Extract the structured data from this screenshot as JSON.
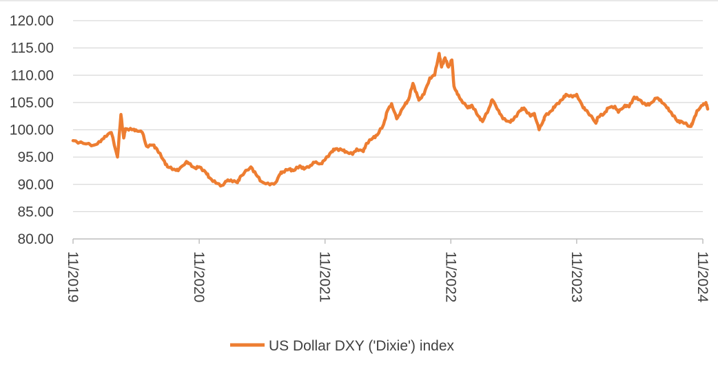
{
  "chart_data": {
    "type": "line",
    "title": "",
    "xlabel": "",
    "ylabel": "",
    "ylim": [
      80,
      120
    ],
    "yticks": [
      "80.00",
      "85.00",
      "90.00",
      "95.00",
      "100.00",
      "105.00",
      "110.00",
      "115.00",
      "120.00"
    ],
    "xticks": [
      "11/2019",
      "11/2020",
      "11/2021",
      "11/2022",
      "11/2023",
      "11/2024"
    ],
    "xlim": [
      "2019-11",
      "2024-11"
    ],
    "grid": "horizontal",
    "legend_position": "bottom",
    "series": [
      {
        "name": "US Dollar DXY ('Dixie') index",
        "color": "#ED7D31",
        "points": [
          [
            "2019-11",
            98.0
          ],
          [
            "2019-12",
            97.5
          ],
          [
            "2020-01",
            97.2
          ],
          [
            "2020-01-20",
            97.8
          ],
          [
            "2020-02",
            98.8
          ],
          [
            "2020-02-20",
            99.5
          ],
          [
            "2020-03-09",
            95.0
          ],
          [
            "2020-03-19",
            102.8
          ],
          [
            "2020-03-27",
            98.5
          ],
          [
            "2020-04",
            100.2
          ],
          [
            "2020-04-20",
            100.0
          ],
          [
            "2020-05",
            100.0
          ],
          [
            "2020-05-20",
            99.5
          ],
          [
            "2020-06",
            97.0
          ],
          [
            "2020-06-20",
            97.2
          ],
          [
            "2020-07",
            96.5
          ],
          [
            "2020-07-20",
            94.5
          ],
          [
            "2020-08",
            93.2
          ],
          [
            "2020-08-20",
            92.8
          ],
          [
            "2020-09",
            92.5
          ],
          [
            "2020-09-25",
            94.2
          ],
          [
            "2020-10",
            93.8
          ],
          [
            "2020-10-20",
            93.0
          ],
          [
            "2020-11",
            93.2
          ],
          [
            "2020-11-20",
            92.2
          ],
          [
            "2020-12",
            91.2
          ],
          [
            "2020-12-20",
            90.2
          ],
          [
            "2021-01-06",
            89.8
          ],
          [
            "2021-01-20",
            90.6
          ],
          [
            "2021-02",
            90.8
          ],
          [
            "2021-02-20",
            90.3
          ],
          [
            "2021-03",
            91.5
          ],
          [
            "2021-03-31",
            93.2
          ],
          [
            "2021-04-15",
            91.8
          ],
          [
            "2021-05",
            90.5
          ],
          [
            "2021-05-25",
            89.9
          ],
          [
            "2021-06-10",
            90.3
          ],
          [
            "2021-06-25",
            92.0
          ],
          [
            "2021-07",
            92.3
          ],
          [
            "2021-07-20",
            92.8
          ],
          [
            "2021-08",
            92.5
          ],
          [
            "2021-08-20",
            93.4
          ],
          [
            "2021-09",
            92.8
          ],
          [
            "2021-09-20",
            93.5
          ],
          [
            "2021-10",
            94.0
          ],
          [
            "2021-10-20",
            93.8
          ],
          [
            "2021-11",
            94.5
          ],
          [
            "2021-11-20",
            96.0
          ],
          [
            "2021-12",
            96.5
          ],
          [
            "2021-12-20",
            96.3
          ],
          [
            "2022-01",
            96.0
          ],
          [
            "2022-01-20",
            95.5
          ],
          [
            "2022-02",
            96.5
          ],
          [
            "2022-02-20",
            96.0
          ],
          [
            "2022-03",
            97.5
          ],
          [
            "2022-03-20",
            98.5
          ],
          [
            "2022-04",
            99.0
          ],
          [
            "2022-04-20",
            101.0
          ],
          [
            "2022-05",
            103.5
          ],
          [
            "2022-05-13",
            104.8
          ],
          [
            "2022-05-28",
            102.0
          ],
          [
            "2022-06",
            102.5
          ],
          [
            "2022-06-20",
            104.5
          ],
          [
            "2022-07",
            105.5
          ],
          [
            "2022-07-14",
            108.5
          ],
          [
            "2022-07-28",
            106.0
          ],
          [
            "2022-08",
            105.5
          ],
          [
            "2022-08-15",
            106.5
          ],
          [
            "2022-09",
            109.5
          ],
          [
            "2022-09-15",
            110.0
          ],
          [
            "2022-09-28",
            114.0
          ],
          [
            "2022-10-05",
            111.5
          ],
          [
            "2022-10-15",
            113.2
          ],
          [
            "2022-10-25",
            111.5
          ],
          [
            "2022-11-04",
            112.8
          ],
          [
            "2022-11-10",
            108.0
          ],
          [
            "2022-11-20",
            106.5
          ],
          [
            "2022-12",
            105.5
          ],
          [
            "2022-12-20",
            104.0
          ],
          [
            "2023-01",
            104.5
          ],
          [
            "2023-01-20",
            102.5
          ],
          [
            "2023-02",
            101.5
          ],
          [
            "2023-02-20",
            104.0
          ],
          [
            "2023-03",
            105.5
          ],
          [
            "2023-03-20",
            103.5
          ],
          [
            "2023-04",
            102.0
          ],
          [
            "2023-04-20",
            101.5
          ],
          [
            "2023-05",
            101.8
          ],
          [
            "2023-05-20",
            103.5
          ],
          [
            "2023-06",
            104.0
          ],
          [
            "2023-06-20",
            102.5
          ],
          [
            "2023-07",
            103.0
          ],
          [
            "2023-07-15",
            100.0
          ],
          [
            "2023-07-28",
            101.8
          ],
          [
            "2023-08",
            102.5
          ],
          [
            "2023-08-20",
            103.5
          ],
          [
            "2023-09",
            104.5
          ],
          [
            "2023-09-20",
            105.5
          ],
          [
            "2023-10",
            106.5
          ],
          [
            "2023-10-20",
            106.0
          ],
          [
            "2023-11",
            106.5
          ],
          [
            "2023-11-20",
            104.0
          ],
          [
            "2023-12",
            103.5
          ],
          [
            "2023-12-27",
            101.2
          ],
          [
            "2024-01",
            102.3
          ],
          [
            "2024-01-20",
            103.0
          ],
          [
            "2024-02",
            104.0
          ],
          [
            "2024-02-20",
            104.3
          ],
          [
            "2024-03",
            103.2
          ],
          [
            "2024-03-20",
            104.5
          ],
          [
            "2024-04",
            104.2
          ],
          [
            "2024-04-16",
            106.0
          ],
          [
            "2024-05",
            105.5
          ],
          [
            "2024-05-20",
            104.5
          ],
          [
            "2024-06",
            104.8
          ],
          [
            "2024-06-20",
            105.8
          ],
          [
            "2024-07",
            105.5
          ],
          [
            "2024-07-20",
            104.0
          ],
          [
            "2024-08",
            103.2
          ],
          [
            "2024-08-20",
            101.5
          ],
          [
            "2024-09",
            101.5
          ],
          [
            "2024-09-25",
            100.6
          ],
          [
            "2024-10",
            101.0
          ],
          [
            "2024-10-15",
            103.5
          ],
          [
            "2024-11",
            104.5
          ],
          [
            "2024-11-10",
            105.0
          ],
          [
            "2024-11-15",
            103.8
          ]
        ]
      }
    ]
  }
}
